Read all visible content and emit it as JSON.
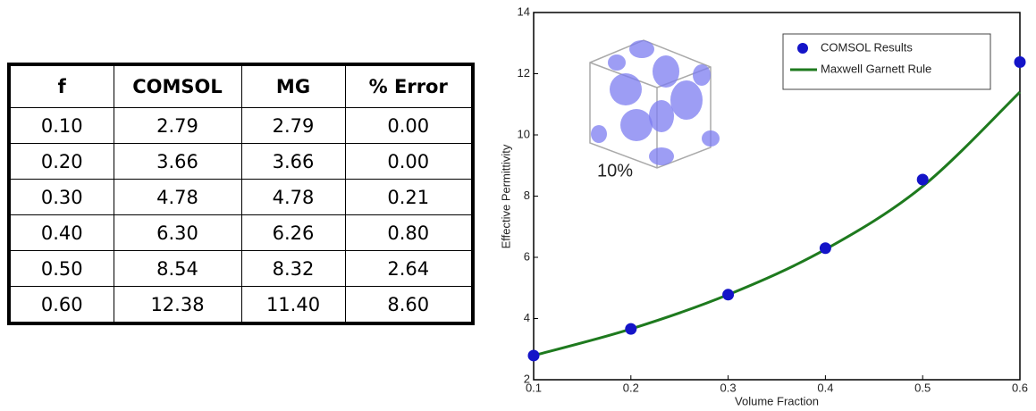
{
  "table": {
    "header": [
      "f",
      "COMSOL",
      "MG",
      "% Error"
    ],
    "rows": [
      [
        "0.10",
        "2.79",
        "2.79",
        "0.00"
      ],
      [
        "0.20",
        "3.66",
        "3.66",
        "0.00"
      ],
      [
        "0.30",
        "4.78",
        "4.78",
        "0.21"
      ],
      [
        "0.40",
        "6.30",
        "6.26",
        "0.80"
      ],
      [
        "0.50",
        "8.54",
        "8.32",
        "2.64"
      ],
      [
        "0.60",
        "12.38",
        "11.40",
        "8.60"
      ]
    ]
  },
  "chart_data": {
    "type": "scatter-line",
    "x_label": "Volume Fraction",
    "y_label": "Effective Permittivity",
    "annotation": "10%",
    "x": [
      0.1,
      0.2,
      0.3,
      0.4,
      0.5,
      0.6
    ],
    "series": [
      {
        "name": "COMSOL Results",
        "color": "#1414c8",
        "kind": "scatter",
        "values": [
          2.79,
          3.66,
          4.78,
          6.3,
          8.54,
          12.38
        ]
      },
      {
        "name": "Maxwell Garnett Rule",
        "color": "#1e7a1e",
        "kind": "line",
        "values": [
          2.79,
          3.66,
          4.78,
          6.26,
          8.32,
          11.4
        ]
      }
    ],
    "xlim": [
      0.1,
      0.6
    ],
    "xticks": [
      0.1,
      0.2,
      0.3,
      0.4,
      0.5,
      0.6
    ],
    "ylim": [
      2,
      14
    ],
    "yticks": [
      2,
      4,
      6,
      8,
      10,
      12,
      14
    ],
    "legend": "upper right"
  }
}
